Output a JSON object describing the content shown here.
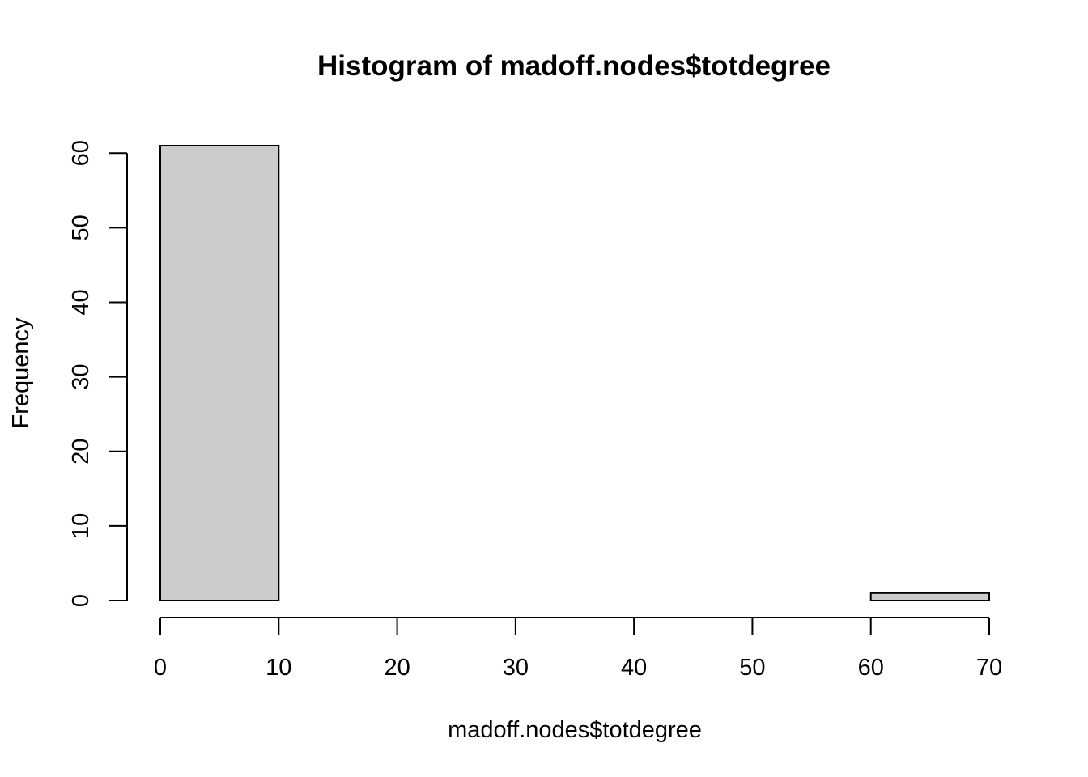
{
  "chart_data": {
    "type": "bar",
    "title": "Histogram of madoff.nodes$totdegree",
    "xlabel": "madoff.nodes$totdegree",
    "ylabel": "Frequency",
    "bins": [
      {
        "start": 0,
        "end": 10,
        "count": 61
      },
      {
        "start": 10,
        "end": 20,
        "count": 0
      },
      {
        "start": 20,
        "end": 30,
        "count": 0
      },
      {
        "start": 30,
        "end": 40,
        "count": 0
      },
      {
        "start": 40,
        "end": 50,
        "count": 0
      },
      {
        "start": 50,
        "end": 60,
        "count": 0
      },
      {
        "start": 60,
        "end": 70,
        "count": 1
      }
    ],
    "xlim": [
      0,
      70
    ],
    "ylim": [
      0,
      61
    ],
    "xticks": [
      0,
      10,
      20,
      30,
      40,
      50,
      60,
      70
    ],
    "yticks": [
      0,
      10,
      20,
      30,
      40,
      50,
      60
    ],
    "bar_fill": "#cccccc",
    "bar_stroke": "#000000",
    "grid": false
  }
}
